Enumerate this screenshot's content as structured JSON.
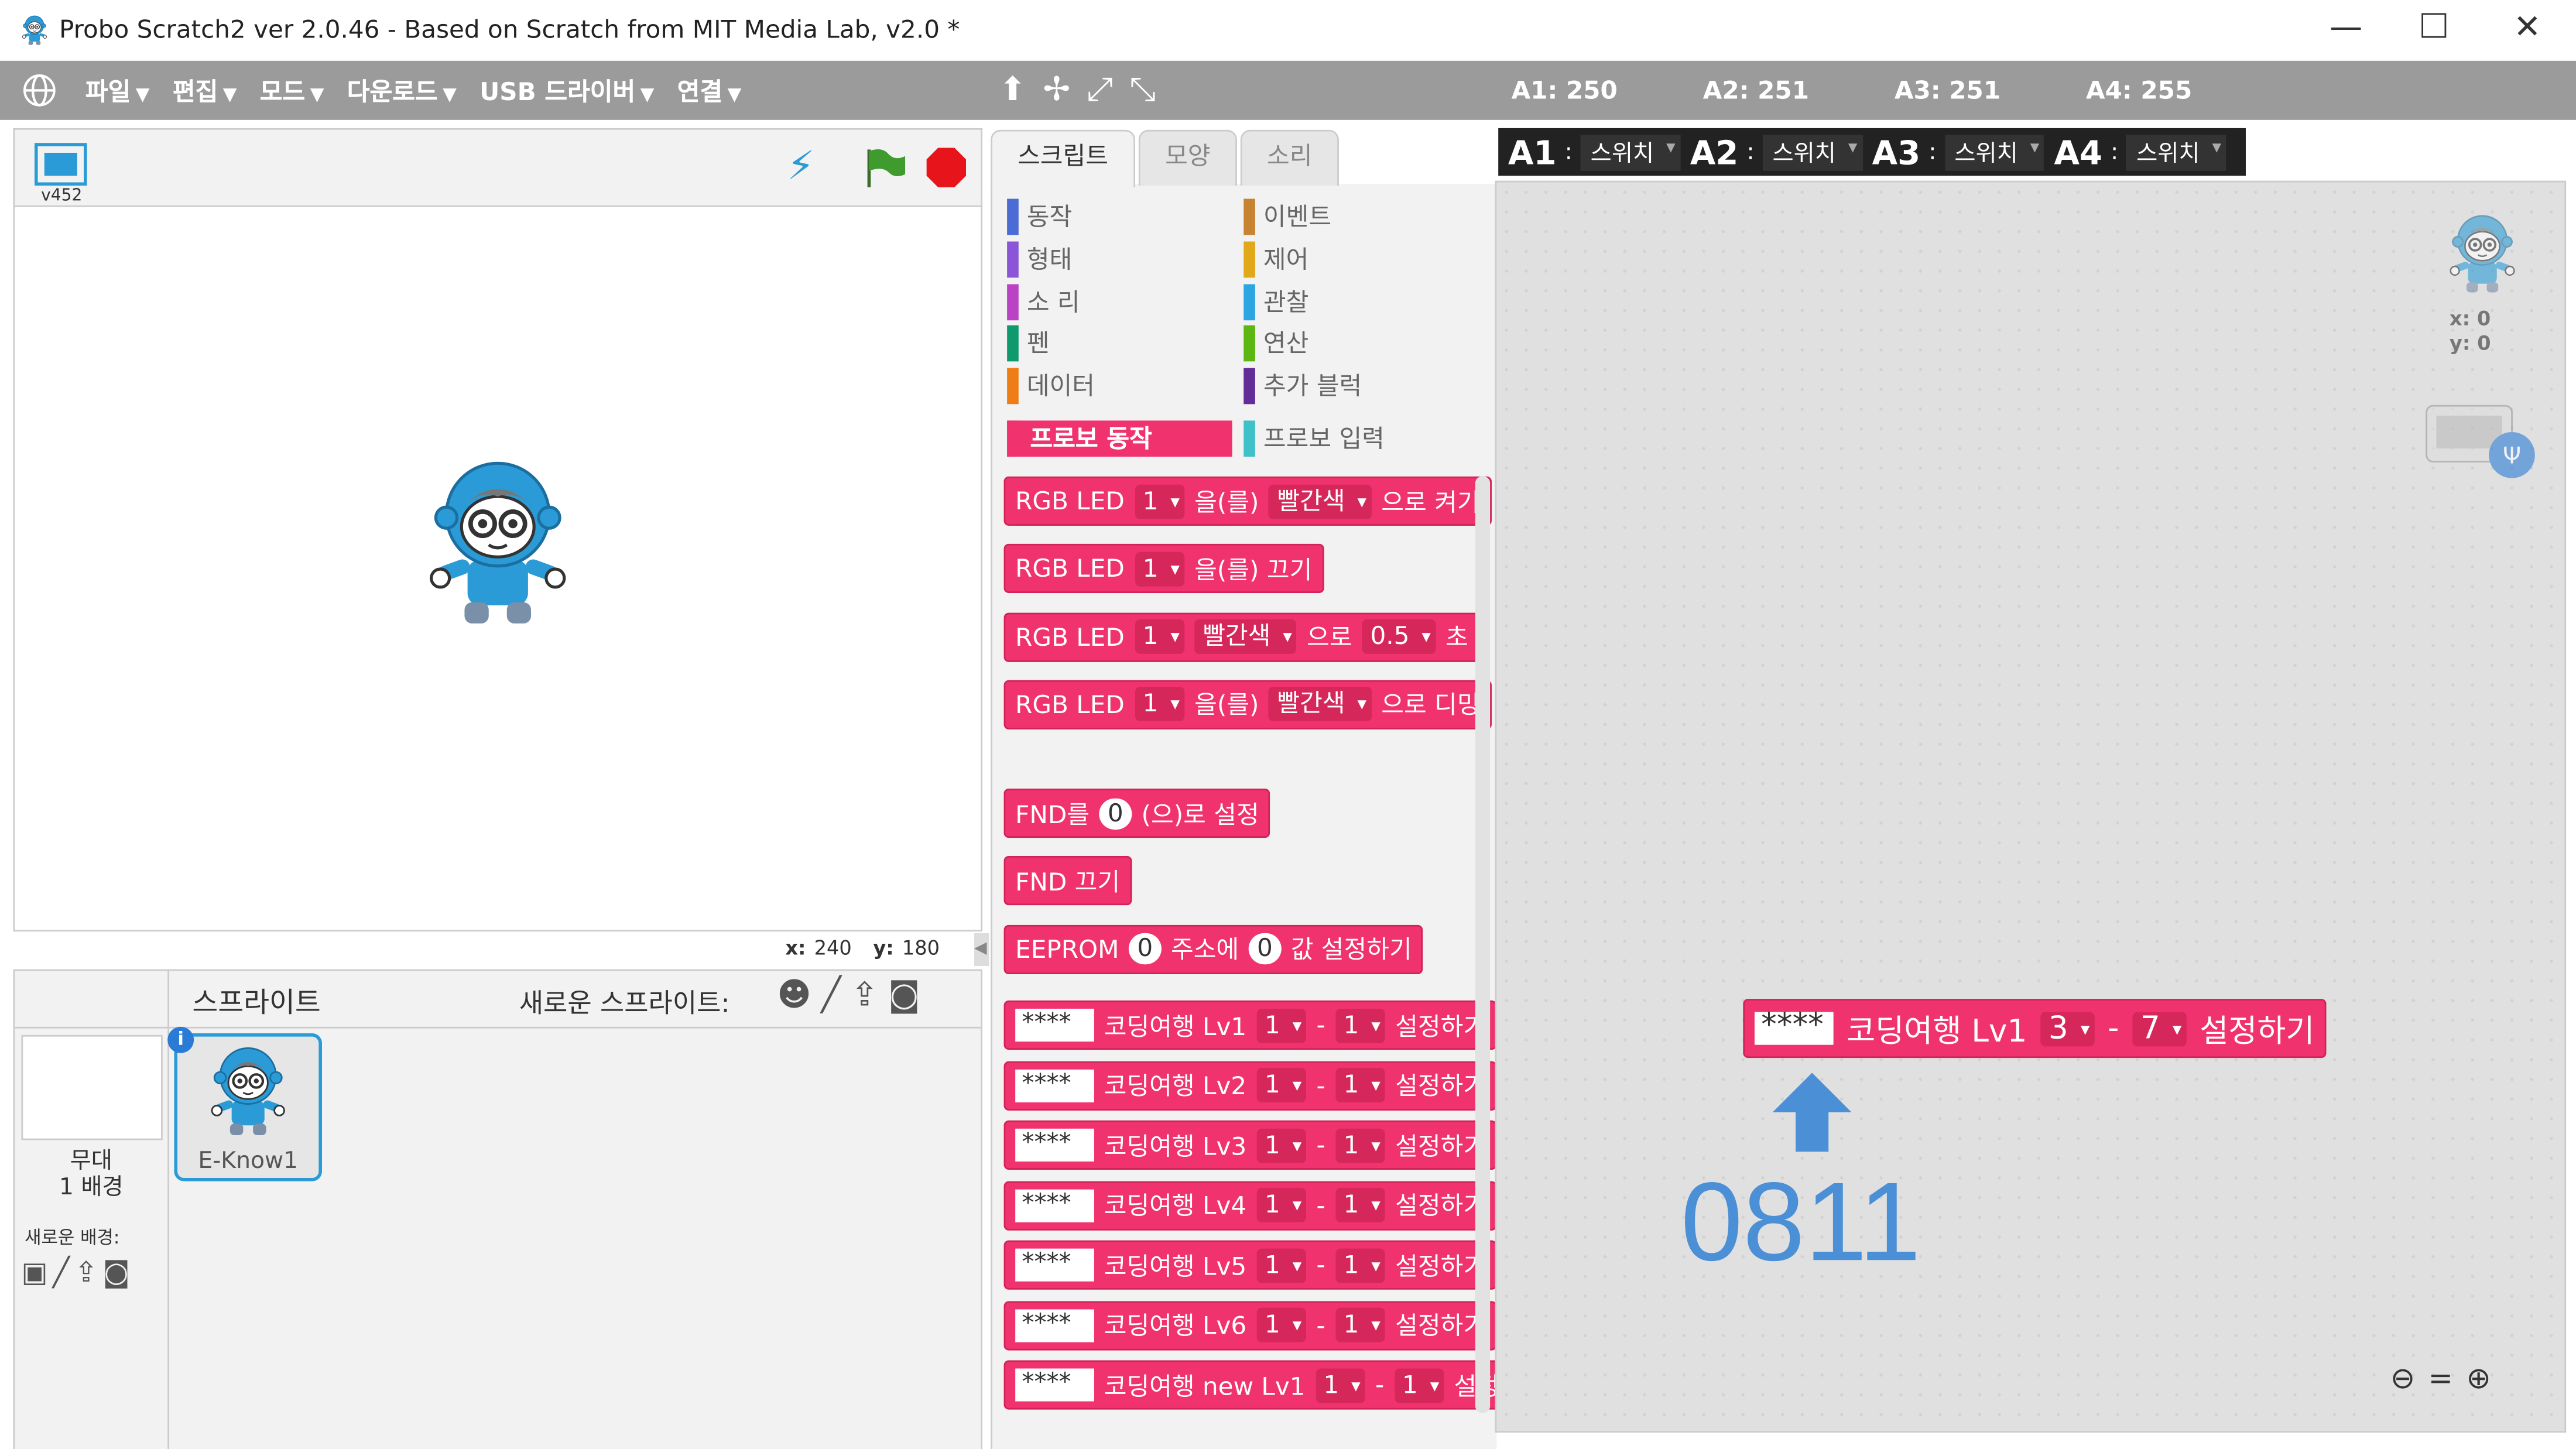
{
  "window": {
    "title": "Probo Scratch2 ver 2.0.46 - Based on Scratch from MIT Media Lab, v2.0 *",
    "menu": [
      "파일",
      "편집",
      "모드",
      "다운로드",
      "USB 드라이버",
      "연결"
    ],
    "sensors": [
      "A1: 250",
      "A2: 251",
      "A3: 251",
      "A4: 255"
    ]
  },
  "switch_bar": [
    {
      "port": "A1",
      "mode": "스위치"
    },
    {
      "port": "A2",
      "mode": "스위치"
    },
    {
      "port": "A3",
      "mode": "스위치"
    },
    {
      "port": "A4",
      "mode": "스위치"
    }
  ],
  "stage": {
    "version": "v452",
    "x_label": "x:",
    "x": "240",
    "y_label": "y:",
    "y": "180"
  },
  "tabs": [
    "스크립트",
    "모양",
    "소리"
  ],
  "categories": {
    "left": [
      {
        "name": "동작",
        "color": "#4a6cd4"
      },
      {
        "name": "형태",
        "color": "#8a55d7"
      },
      {
        "name": "소 리",
        "color": "#bb42c3"
      },
      {
        "name": "펜",
        "color": "#0e9a6c"
      },
      {
        "name": "데이터",
        "color": "#ee7d16"
      },
      {
        "name": "프로보 동작",
        "color": "#f0336e",
        "active": true
      }
    ],
    "right": [
      {
        "name": "이벤트",
        "color": "#c88330"
      },
      {
        "name": "제어",
        "color": "#e1a91a"
      },
      {
        "name": "관찰",
        "color": "#2ca5e2"
      },
      {
        "name": "연산",
        "color": "#5cb712"
      },
      {
        "name": "추가 블럭",
        "color": "#632d99"
      },
      {
        "name": "프로보 입력",
        "color": "#3ec1c9"
      }
    ]
  },
  "block_groups": [
    [
      {
        "parts": [
          {
            "kind": "text",
            "text": "RGB LED"
          },
          {
            "kind": "dropdown",
            "text": "1"
          },
          {
            "kind": "text",
            "text": "을(를)"
          },
          {
            "kind": "dropdown",
            "text": "빨간색"
          },
          {
            "kind": "text",
            "text": "으로 켜기"
          }
        ]
      },
      {
        "parts": [
          {
            "kind": "text",
            "text": "RGB LED"
          },
          {
            "kind": "dropdown",
            "text": "1"
          },
          {
            "kind": "text",
            "text": "을(를) 끄기"
          }
        ]
      },
      {
        "parts": [
          {
            "kind": "text",
            "text": "RGB LED"
          },
          {
            "kind": "dropdown",
            "text": "1"
          },
          {
            "kind": "dropdown",
            "text": "빨간색"
          },
          {
            "kind": "text",
            "text": "으로"
          },
          {
            "kind": "dropdown",
            "text": "0.5"
          },
          {
            "kind": "text",
            "text": "초"
          }
        ]
      },
      {
        "parts": [
          {
            "kind": "text",
            "text": "RGB LED"
          },
          {
            "kind": "dropdown",
            "text": "1"
          },
          {
            "kind": "text",
            "text": "을(를)"
          },
          {
            "kind": "dropdown",
            "text": "빨간색"
          },
          {
            "kind": "text",
            "text": "으로 디밍"
          }
        ]
      }
    ],
    [
      {
        "parts": [
          {
            "kind": "text",
            "text": "FND를"
          },
          {
            "kind": "number",
            "text": "0"
          },
          {
            "kind": "text",
            "text": "(으)로 설정"
          }
        ]
      },
      {
        "parts": [
          {
            "kind": "text",
            "text": "FND 끄기"
          }
        ]
      },
      {
        "parts": [
          {
            "kind": "text",
            "text": "EEPROM"
          },
          {
            "kind": "number",
            "text": "0"
          },
          {
            "kind": "text",
            "text": "주소에"
          },
          {
            "kind": "number",
            "text": "0"
          },
          {
            "kind": "text",
            "text": "값 설정하기"
          }
        ]
      }
    ],
    [
      {
        "parts": [
          {
            "kind": "field",
            "text": "****"
          },
          {
            "kind": "text",
            "text": "코딩여행 Lv1"
          },
          {
            "kind": "dropdown",
            "text": "1"
          },
          {
            "kind": "text",
            "text": "-"
          },
          {
            "kind": "dropdown",
            "text": "1"
          },
          {
            "kind": "text",
            "text": "설정하기"
          }
        ]
      },
      {
        "parts": [
          {
            "kind": "field",
            "text": "****"
          },
          {
            "kind": "text",
            "text": "코딩여행 Lv2"
          },
          {
            "kind": "dropdown",
            "text": "1"
          },
          {
            "kind": "text",
            "text": "-"
          },
          {
            "kind": "dropdown",
            "text": "1"
          },
          {
            "kind": "text",
            "text": "설정하기"
          }
        ]
      },
      {
        "parts": [
          {
            "kind": "field",
            "text": "****"
          },
          {
            "kind": "text",
            "text": "코딩여행 Lv3"
          },
          {
            "kind": "dropdown",
            "text": "1"
          },
          {
            "kind": "text",
            "text": "-"
          },
          {
            "kind": "dropdown",
            "text": "1"
          },
          {
            "kind": "text",
            "text": "설정하기"
          }
        ]
      },
      {
        "parts": [
          {
            "kind": "field",
            "text": "****"
          },
          {
            "kind": "text",
            "text": "코딩여행 Lv4"
          },
          {
            "kind": "dropdown",
            "text": "1"
          },
          {
            "kind": "text",
            "text": "-"
          },
          {
            "kind": "dropdown",
            "text": "1"
          },
          {
            "kind": "text",
            "text": "설정하기"
          }
        ]
      },
      {
        "parts": [
          {
            "kind": "field",
            "text": "****"
          },
          {
            "kind": "text",
            "text": "코딩여행 Lv5"
          },
          {
            "kind": "dropdown",
            "text": "1"
          },
          {
            "kind": "text",
            "text": "-"
          },
          {
            "kind": "dropdown",
            "text": "1"
          },
          {
            "kind": "text",
            "text": "설정하기"
          }
        ]
      },
      {
        "parts": [
          {
            "kind": "field",
            "text": "****"
          },
          {
            "kind": "text",
            "text": "코딩여행 Lv6"
          },
          {
            "kind": "dropdown",
            "text": "1"
          },
          {
            "kind": "text",
            "text": "-"
          },
          {
            "kind": "dropdown",
            "text": "1"
          },
          {
            "kind": "text",
            "text": "설정하기"
          }
        ]
      },
      {
        "parts": [
          {
            "kind": "field",
            "text": "****"
          },
          {
            "kind": "text",
            "text": "코딩여행 new Lv1"
          },
          {
            "kind": "dropdown",
            "text": "1"
          },
          {
            "kind": "text",
            "text": "-"
          },
          {
            "kind": "dropdown",
            "text": "1"
          },
          {
            "kind": "text",
            "text": "설정하기"
          }
        ]
      }
    ]
  ],
  "sprites": {
    "header": "스프라이트",
    "new_sprite": "새로운 스프라이트:",
    "stage_label": "무대",
    "backdrops": "1 배경",
    "new_backdrop": "새로운 배경:",
    "sprite_name": "E-Know1"
  },
  "script_area": {
    "sprite_x": "x: 0",
    "sprite_y": "y: 0",
    "block": {
      "parts": [
        {
          "kind": "field",
          "text": "****"
        },
        {
          "kind": "text",
          "text": "코딩여행 Lv1"
        },
        {
          "kind": "dropdown",
          "text": "3"
        },
        {
          "kind": "text",
          "text": "-"
        },
        {
          "kind": "dropdown",
          "text": "7"
        },
        {
          "kind": "text",
          "text": "설정하기"
        }
      ]
    },
    "annotation": "0811"
  }
}
